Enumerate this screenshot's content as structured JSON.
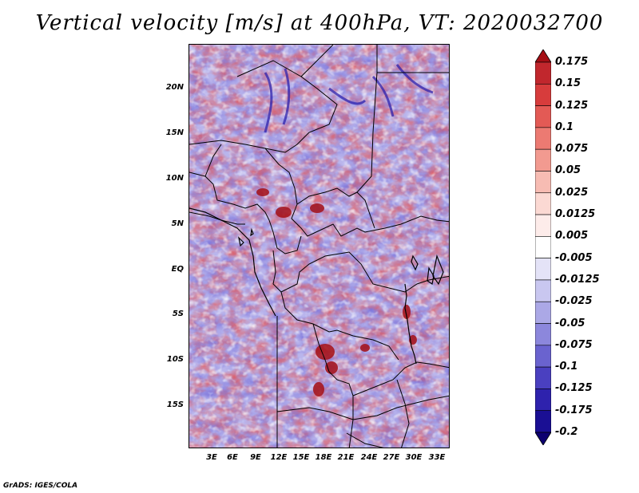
{
  "title": "Vertical velocity [m/s] at 400hPa, VT: 2020032700",
  "credit": "GrADS: IGES/COLA",
  "map": {
    "lat_labels": [
      "20N",
      "15N",
      "10N",
      "5N",
      "EQ",
      "5S",
      "10S",
      "15S"
    ],
    "lon_labels": [
      "3E",
      "6E",
      "9E",
      "12E",
      "15E",
      "18E",
      "21E",
      "24E",
      "27E",
      "30E",
      "33E"
    ]
  },
  "colorbar": {
    "labels": [
      "0.175",
      "0.15",
      "0.125",
      "0.1",
      "0.075",
      "0.05",
      "0.025",
      "0.0125",
      "0.005",
      "-0.005",
      "-0.0125",
      "-0.025",
      "-0.05",
      "-0.075",
      "-0.1",
      "-0.125",
      "-0.175",
      "-0.2"
    ],
    "colors": [
      "#a50f15",
      "#c1272d",
      "#d73c3c",
      "#e35a55",
      "#ec7a72",
      "#f29a90",
      "#f7bcb3",
      "#fbd9d3",
      "#fdecea",
      "#ffffff",
      "#e4e3f7",
      "#c9c7f0",
      "#aba8e6",
      "#8c87dc",
      "#6a63cf",
      "#4a40c0",
      "#2e22ad",
      "#1a0f94",
      "#0d0070"
    ]
  }
}
